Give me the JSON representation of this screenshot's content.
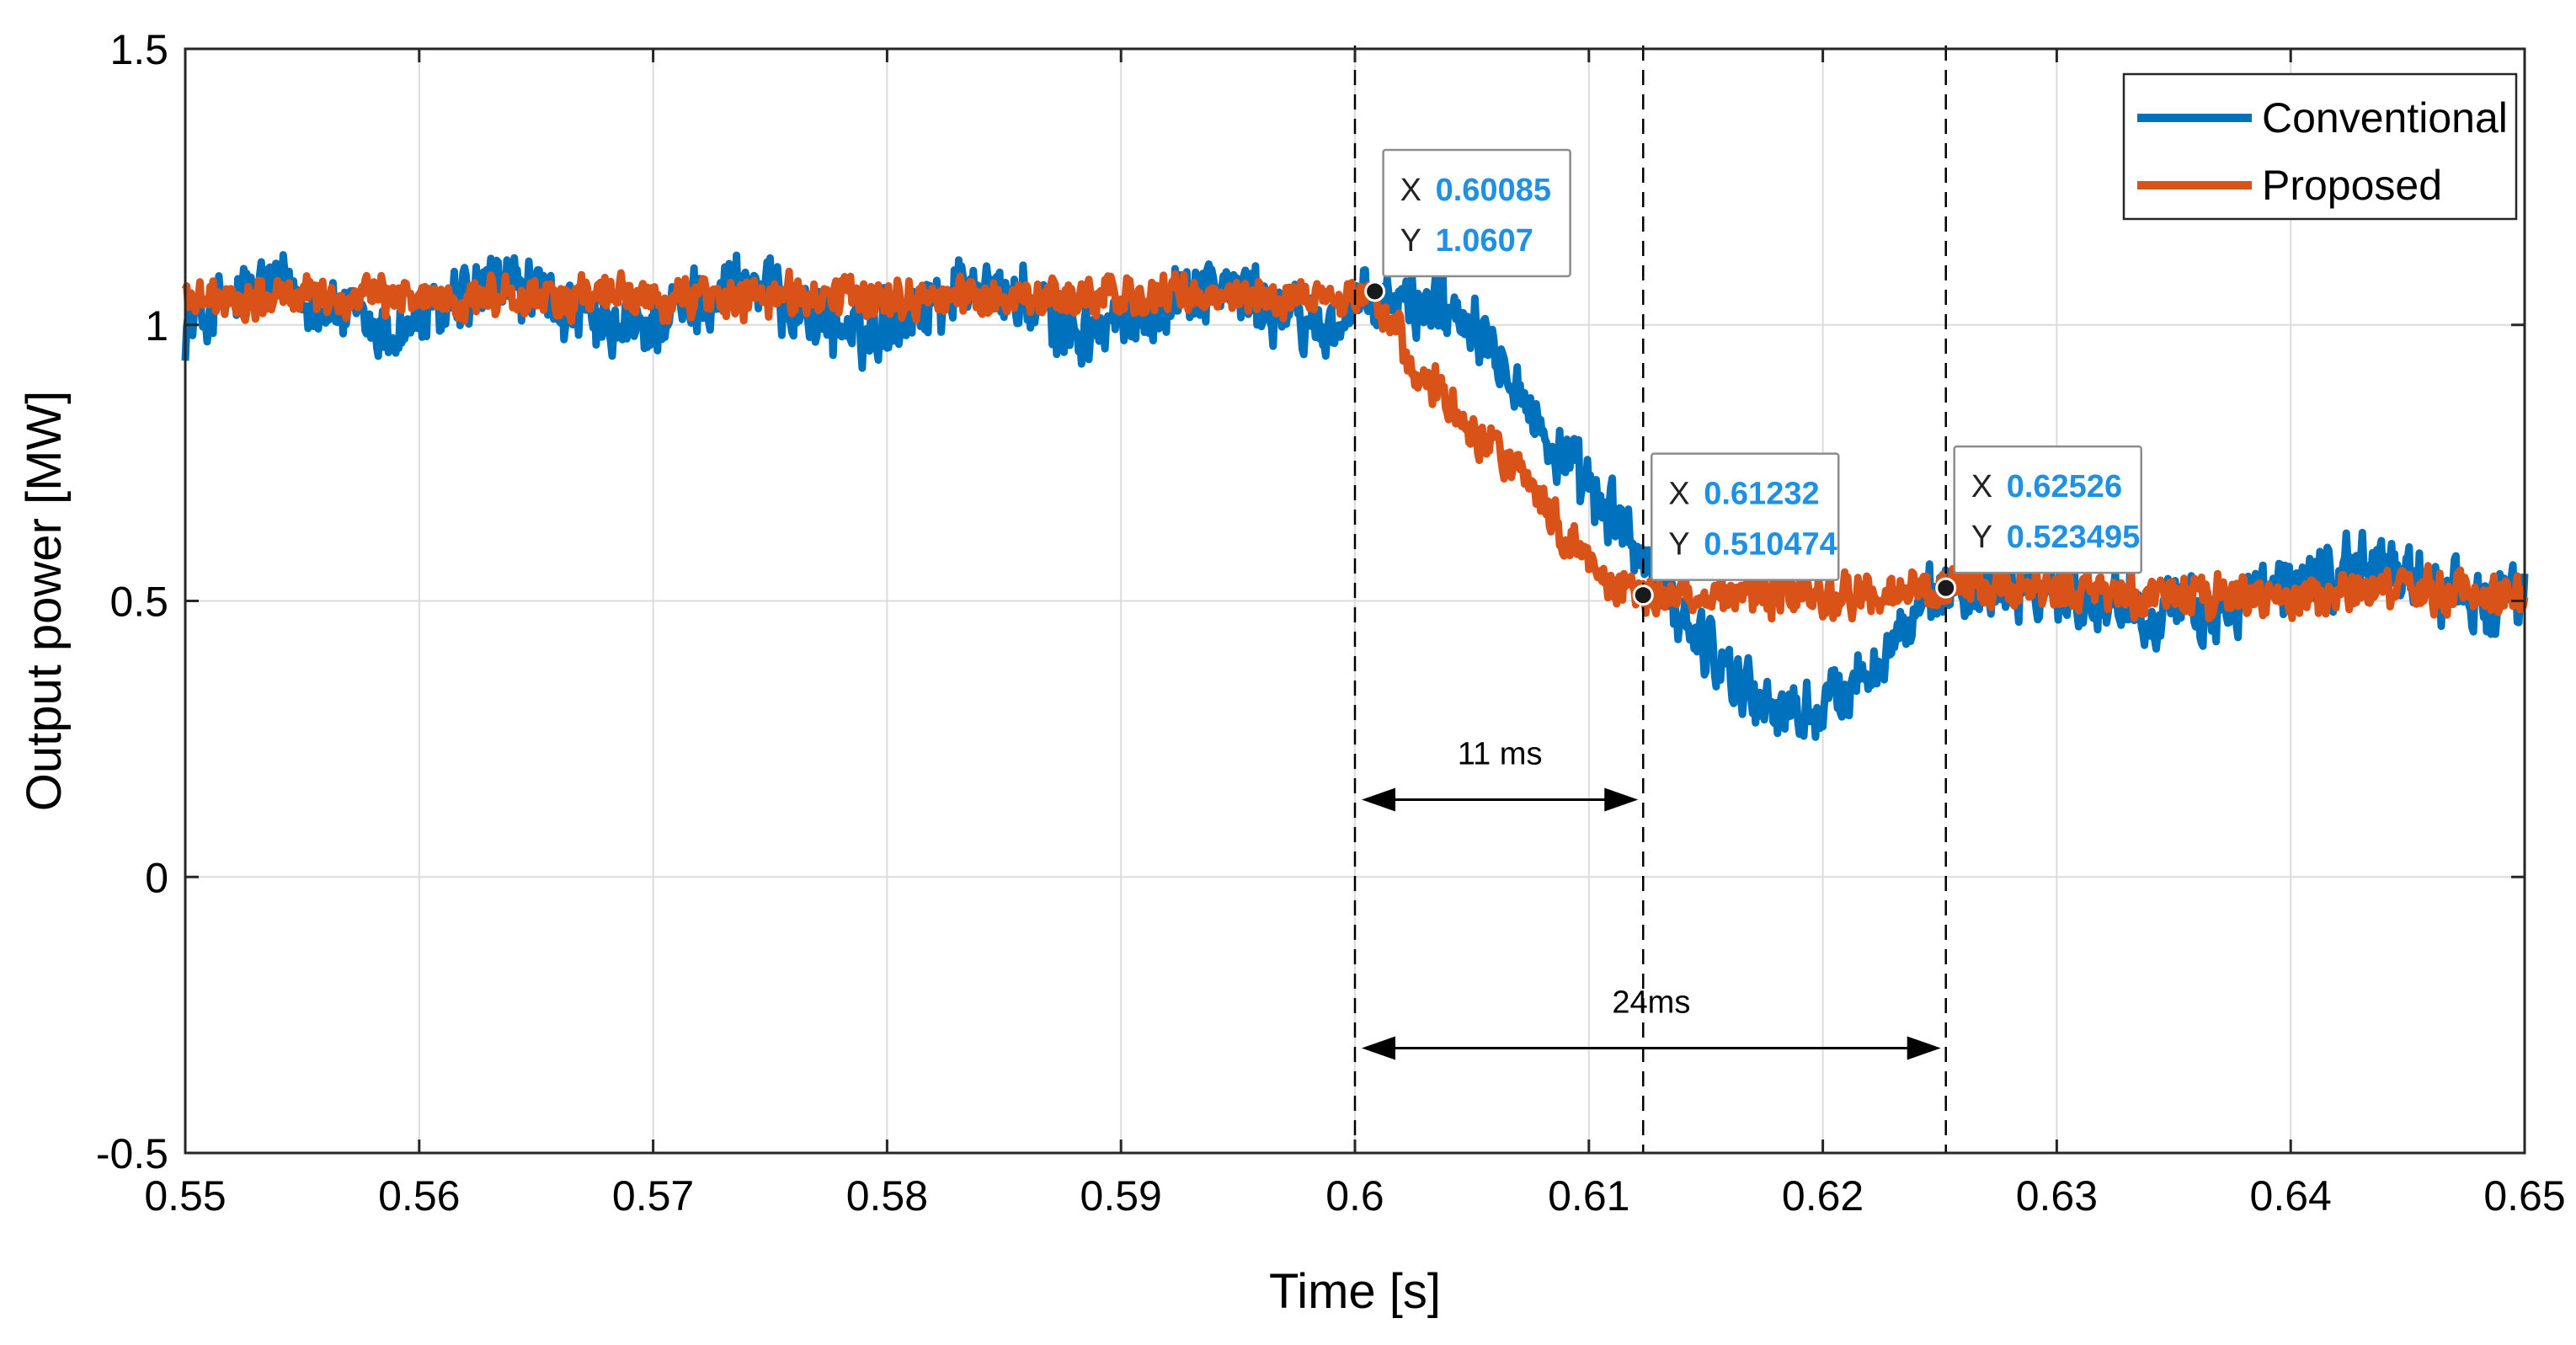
{
  "chart_data": {
    "type": "line",
    "title": "",
    "xlabel": "Time [s]",
    "ylabel": "Output power [MW]",
    "xlim": [
      0.55,
      0.65
    ],
    "ylim": [
      -0.5,
      1.5
    ],
    "xticks": [
      0.55,
      0.56,
      0.57,
      0.58,
      0.59,
      0.6,
      0.61,
      0.62,
      0.63,
      0.64,
      0.65
    ],
    "xtick_labels": [
      "0.55",
      "0.56",
      "0.57",
      "0.58",
      "0.59",
      "0.6",
      "0.61",
      "0.62",
      "0.63",
      "0.64",
      "0.65"
    ],
    "yticks": [
      -0.5,
      0,
      0.5,
      1,
      1.5
    ],
    "ytick_labels": [
      "-0.5",
      "0",
      "0.5",
      "1",
      "1.5"
    ],
    "grid": true,
    "legend_position": "top-right",
    "series": [
      {
        "name": "Conventional",
        "color": "#0072BD",
        "noise": 0.045,
        "x": [
          0.55,
          0.5537,
          0.5587,
          0.5637,
          0.5687,
          0.5737,
          0.5787,
          0.5837,
          0.5887,
          0.5937,
          0.5987,
          0.6,
          0.601,
          0.603,
          0.605,
          0.6065,
          0.608,
          0.6095,
          0.611,
          0.6125,
          0.614,
          0.616,
          0.6175,
          0.619,
          0.6205,
          0.622,
          0.6235,
          0.6253,
          0.628,
          0.632,
          0.636,
          0.64,
          0.644,
          0.6475,
          0.65
        ],
        "y": [
          1.0,
          1.08,
          0.98,
          1.08,
          0.98,
          1.08,
          0.98,
          1.08,
          0.98,
          1.08,
          0.99,
          1.02,
          1.04,
          1.04,
          1.02,
          0.94,
          0.8,
          0.72,
          0.65,
          0.57,
          0.47,
          0.38,
          0.31,
          0.29,
          0.32,
          0.38,
          0.45,
          0.52,
          0.54,
          0.5,
          0.47,
          0.53,
          0.57,
          0.5,
          0.5
        ]
      },
      {
        "name": "Proposed",
        "color": "#D95319",
        "noise": 0.028,
        "x": [
          0.55,
          0.6,
          0.601,
          0.603,
          0.605,
          0.607,
          0.609,
          0.611,
          0.6123,
          0.615,
          0.62,
          0.625,
          0.63,
          0.635,
          0.64,
          0.645,
          0.65
        ],
        "y": [
          1.05,
          1.05,
          1.04,
          0.9,
          0.82,
          0.74,
          0.62,
          0.53,
          0.51,
          0.51,
          0.51,
          0.52,
          0.52,
          0.51,
          0.51,
          0.52,
          0.51
        ]
      }
    ],
    "data_tips": [
      {
        "x_label": "X",
        "x_value": "0.60085",
        "y_label": "Y",
        "y_value": "1.0607",
        "x": 0.60085,
        "y": 1.0607
      },
      {
        "x_label": "X",
        "x_value": "0.61232",
        "y_label": "Y",
        "y_value": "0.510474",
        "x": 0.61232,
        "y": 0.510474
      },
      {
        "x_label": "X",
        "x_value": "0.62526",
        "y_label": "Y",
        "y_value": "0.523495",
        "x": 0.62526,
        "y": 0.523495
      }
    ],
    "reference_lines_x": [
      0.6,
      0.61232,
      0.62526
    ],
    "annotations": [
      {
        "text": "11 ms",
        "x_start": 0.6,
        "x_end": 0.61232,
        "y": 0.14
      },
      {
        "text": "24ms",
        "x_start": 0.6,
        "x_end": 0.62526,
        "y": -0.31
      }
    ],
    "colors": {
      "datatip_value": "#1E90E6",
      "datatip_marker": "#1a1a1a",
      "grid": "#dcdcdc",
      "axis": "#262626"
    }
  }
}
